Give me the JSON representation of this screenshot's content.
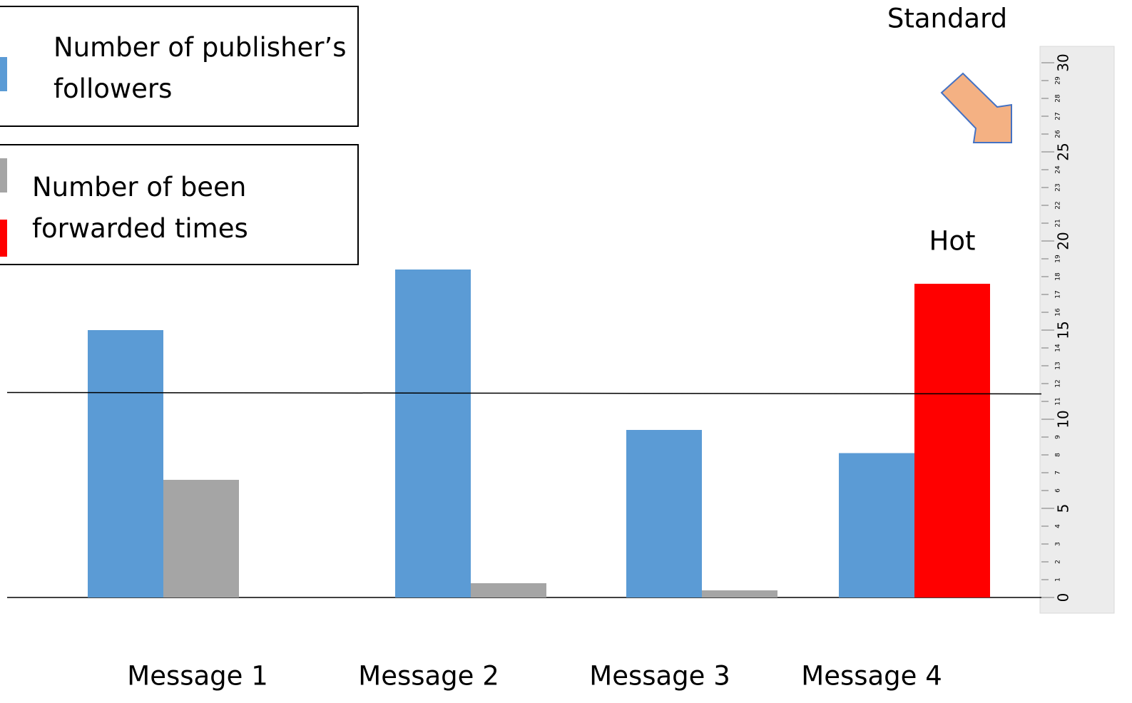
{
  "chart_data": {
    "type": "bar",
    "categories": [
      "Message 1",
      "Message 2",
      "Message 3",
      "Message 4"
    ],
    "series": [
      {
        "name": "Number of publisher’s followers",
        "color": "#5b9bd5",
        "values": [
          15,
          18.4,
          9.4,
          8.1
        ]
      },
      {
        "name": "Number of been forwarded times",
        "color": "#a5a5a5",
        "colors": [
          "#a5a5a5",
          "#a5a5a5",
          "#a5a5a5",
          "#ff0000"
        ],
        "values": [
          6.6,
          0.8,
          0.4,
          17.6
        ]
      }
    ],
    "ylim": [
      0,
      30
    ],
    "yticks": [
      0,
      1,
      2,
      3,
      4,
      5,
      6,
      7,
      8,
      9,
      10,
      11,
      12,
      13,
      14,
      15,
      16,
      17,
      18,
      19,
      20,
      21,
      22,
      23,
      24,
      25,
      26,
      27,
      28,
      29,
      30
    ],
    "annotations": [
      {
        "text": "Standard",
        "value": 11.5
      },
      {
        "text": "Hot",
        "series": 1,
        "index": 3
      }
    ]
  }
}
